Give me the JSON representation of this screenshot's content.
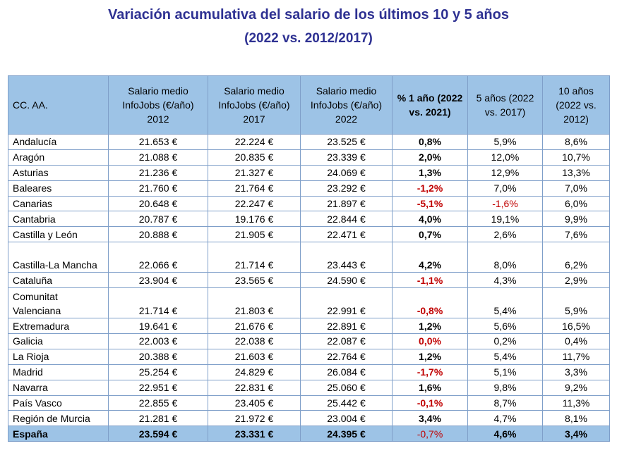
{
  "title_line1": "Variación acumulativa del salario de los últimos 10 y 5 años",
  "title_line2": "(2022 vs. 2012/2017)",
  "headers": {
    "region": "CC. AA.",
    "s2012": "Salario medio InfoJobs (€/año) 2012",
    "s2017": "Salario medio InfoJobs (€/año) 2017",
    "s2022": "Salario medio InfoJobs (€/año) 2022",
    "p1": "% 1 año (2022 vs. 2021)",
    "p5": "5 años (2022 vs. 2017)",
    "p10": "10 años (2022 vs. 2012)"
  },
  "rows": [
    {
      "region": "Andalucía",
      "s2012": "21.653 €",
      "s2017": "22.224 €",
      "s2022": "23.525 €",
      "p1": "0,8%",
      "p5": "5,9%",
      "p10": "8,6%"
    },
    {
      "region": "Aragón",
      "s2012": "21.088 €",
      "s2017": "20.835 €",
      "s2022": "23.339 €",
      "p1": "2,0%",
      "p5": "12,0%",
      "p10": "10,7%"
    },
    {
      "region": "Asturias",
      "s2012": "21.236 €",
      "s2017": "21.327 €",
      "s2022": "24.069 €",
      "p1": "1,3%",
      "p5": "12,9%",
      "p10": "13,3%"
    },
    {
      "region": "Baleares",
      "s2012": "21.760 €",
      "s2017": "21.764 €",
      "s2022": "23.292 €",
      "p1": "-1,2%",
      "p5": "7,0%",
      "p10": "7,0%"
    },
    {
      "region": "Canarias",
      "s2012": "20.648 €",
      "s2017": "22.247 €",
      "s2022": "21.897 €",
      "p1": "-5,1%",
      "p5": "-1,6%",
      "p10": "6,0%"
    },
    {
      "region": "Cantabria",
      "s2012": "20.787 €",
      "s2017": "19.176 €",
      "s2022": "22.844 €",
      "p1": "4,0%",
      "p5": "19,1%",
      "p10": "9,9%"
    },
    {
      "region": "Castilla y León",
      "s2012": "20.888 €",
      "s2017": "21.905 €",
      "s2022": "22.471 €",
      "p1": "0,7%",
      "p5": "2,6%",
      "p10": "7,6%"
    },
    {
      "region": "Castilla-La Mancha",
      "s2012": "22.066 €",
      "s2017": "21.714 €",
      "s2022": "23.443 €",
      "p1": "4,2%",
      "p5": "8,0%",
      "p10": "6,2%"
    },
    {
      "region": "Cataluña",
      "s2012": "23.904 €",
      "s2017": "23.565 €",
      "s2022": "24.590 €",
      "p1": "-1,1%",
      "p5": "4,3%",
      "p10": "2,9%"
    },
    {
      "region": "Comunitat Valenciana",
      "s2012": "21.714 €",
      "s2017": "21.803 €",
      "s2022": "22.991 €",
      "p1": "-0,8%",
      "p5": "5,4%",
      "p10": "5,9%"
    },
    {
      "region": "Extremadura",
      "s2012": "19.641 €",
      "s2017": "21.676 €",
      "s2022": "22.891 €",
      "p1": "1,2%",
      "p5": "5,6%",
      "p10": "16,5%"
    },
    {
      "region": "Galicia",
      "s2012": "22.003 €",
      "s2017": "22.038 €",
      "s2022": "22.087 €",
      "p1": "0,0%",
      "p5": "0,2%",
      "p10": "0,4%"
    },
    {
      "region": "La Rioja",
      "s2012": "20.388 €",
      "s2017": "21.603 €",
      "s2022": "22.764 €",
      "p1": "1,2%",
      "p5": "5,4%",
      "p10": "11,7%"
    },
    {
      "region": "Madrid",
      "s2012": "25.254 €",
      "s2017": "24.829 €",
      "s2022": "26.084 €",
      "p1": "-1,7%",
      "p5": "5,1%",
      "p10": "3,3%"
    },
    {
      "region": "Navarra",
      "s2012": "22.951 €",
      "s2017": "22.831 €",
      "s2022": "25.060 €",
      "p1": "1,6%",
      "p5": "9,8%",
      "p10": "9,2%"
    },
    {
      "region": "País Vasco",
      "s2012": "22.855 €",
      "s2017": "23.405 €",
      "s2022": "25.442 €",
      "p1": "-0,1%",
      "p5": "8,7%",
      "p10": "11,3%"
    },
    {
      "region": "Región de Murcia",
      "s2012": "21.281 €",
      "s2017": "21.972 €",
      "s2022": "23.004 €",
      "p1": "3,4%",
      "p5": "4,7%",
      "p10": "8,1%"
    }
  ],
  "total": {
    "region": "España",
    "s2012": "23.594 €",
    "s2017": "23.331 €",
    "s2022": "24.395 €",
    "p1": "-0,7%",
    "p5": "4,6%",
    "p10": "3,4%"
  },
  "colors": {
    "title": "#2e3192",
    "header_bg": "#9dc3e6",
    "border": "#7f9fc9",
    "negative": "#c00000"
  }
}
